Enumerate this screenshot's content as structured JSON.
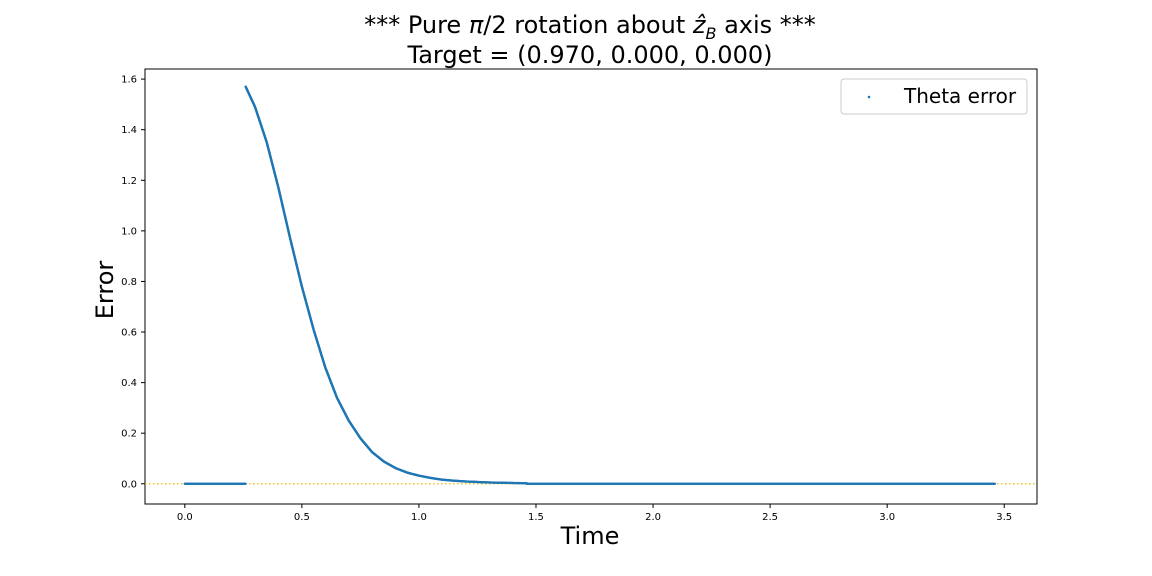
{
  "chart_data": {
    "type": "scatter",
    "title": "*** Pure π/2 rotation about ẑ_B axis ***",
    "title_prefix": "*** Pure ",
    "title_pi": "π",
    "title_mid": "/2 rotation about ",
    "title_zhat": "ẑ",
    "title_sub": "B",
    "title_suffix": " axis ***",
    "subtitle": "Target = (0.970, 0.000, 0.000)",
    "xlabel": "Time",
    "ylabel": "Error",
    "xlim": [
      -0.17,
      3.64
    ],
    "ylim": [
      -0.08,
      1.64
    ],
    "xticks": [
      0.0,
      0.5,
      1.0,
      1.5,
      2.0,
      2.5,
      3.0,
      3.5
    ],
    "xtick_labels": [
      "0.0",
      "0.5",
      "1.0",
      "1.5",
      "2.0",
      "2.5",
      "3.0",
      "3.5"
    ],
    "yticks": [
      0.0,
      0.2,
      0.4,
      0.6,
      0.8,
      1.0,
      1.2,
      1.4,
      1.6
    ],
    "ytick_labels": [
      "0.0",
      "0.2",
      "0.4",
      "0.6",
      "0.8",
      "1.0",
      "1.2",
      "1.4",
      "1.6"
    ],
    "grid": false,
    "legend_position": "top-right",
    "reference_line": {
      "y": 0.0,
      "style": "dotted",
      "color": "#e6b800"
    },
    "series": [
      {
        "name": "Theta error",
        "color": "#1f77b4",
        "segments": [
          {
            "x": [
              0.0,
              0.26
            ],
            "y": [
              0.0,
              0.0
            ]
          },
          {
            "x": [
              0.26,
              0.3,
              0.35,
              0.4,
              0.45,
              0.5,
              0.55,
              0.6,
              0.65,
              0.7,
              0.75,
              0.8,
              0.85,
              0.9,
              0.95,
              1.0,
              1.05,
              1.1,
              1.15,
              1.2,
              1.25,
              1.3,
              1.35,
              1.4,
              1.46
            ],
            "y": [
              1.57,
              1.49,
              1.35,
              1.17,
              0.97,
              0.78,
              0.61,
              0.46,
              0.34,
              0.25,
              0.18,
              0.125,
              0.088,
              0.062,
              0.044,
              0.032,
              0.023,
              0.016,
              0.012,
              0.009,
              0.007,
              0.005,
              0.004,
              0.003,
              0.002
            ]
          },
          {
            "x": [
              1.46,
              3.46
            ],
            "y": [
              0.0,
              0.0
            ]
          }
        ]
      }
    ]
  }
}
